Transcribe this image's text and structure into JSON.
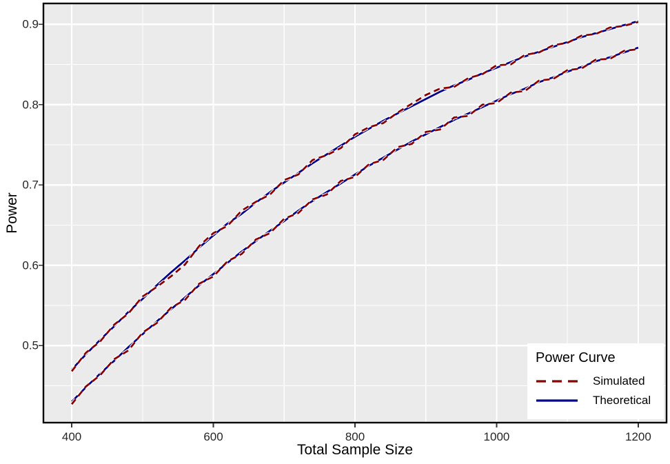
{
  "figure": {
    "panel_bg": "#EBEBEB",
    "grid_color": "#FFFFFF",
    "border_color": "#000000",
    "tick_color": "#333333",
    "tick_label_color": "#262626",
    "halo_color": "#FFFFFF"
  },
  "chart_data": {
    "type": "line",
    "title": "",
    "xlabel": "Total Sample Size",
    "ylabel": "Power",
    "xlim": [
      360,
      1240
    ],
    "ylim": [
      0.404,
      0.926
    ],
    "grid": true,
    "x_tick_values": [
      400,
      600,
      800,
      1000,
      1200
    ],
    "x_tick_labels": [
      "400",
      "600",
      "800",
      "1000",
      "1200"
    ],
    "x_minor_values": [
      500,
      700,
      900,
      1100
    ],
    "y_tick_values": [
      0.5,
      0.6,
      0.7,
      0.8,
      0.9
    ],
    "y_tick_labels": [
      "0.5",
      "0.6",
      "0.7",
      "0.8",
      "0.9"
    ],
    "y_minor_values": [
      0.45,
      0.55,
      0.65,
      0.75,
      0.85
    ],
    "legend": {
      "title": "Power Curve",
      "position": "bottom-right",
      "entries": [
        {
          "label": "Simulated",
          "color": "#8B0000",
          "dash": true
        },
        {
          "label": "Theoretical",
          "color": "#00008B",
          "dash": false
        }
      ]
    },
    "x": [
      400,
      420,
      440,
      460,
      480,
      500,
      520,
      540,
      560,
      580,
      600,
      620,
      640,
      660,
      680,
      700,
      720,
      740,
      760,
      780,
      800,
      820,
      840,
      860,
      880,
      900,
      920,
      940,
      960,
      980,
      1000,
      1020,
      1040,
      1060,
      1080,
      1100,
      1120,
      1140,
      1160,
      1180,
      1200
    ],
    "series": [
      {
        "name": "Theoretical (upper curve)",
        "legend": "Theoretical",
        "style": "solid",
        "color": "#00008B",
        "values": [
          0.47,
          0.489,
          0.507,
          0.524,
          0.542,
          0.558,
          0.575,
          0.591,
          0.606,
          0.622,
          0.637,
          0.652,
          0.664,
          0.678,
          0.691,
          0.703,
          0.715,
          0.727,
          0.738,
          0.749,
          0.76,
          0.77,
          0.78,
          0.789,
          0.798,
          0.807,
          0.816,
          0.824,
          0.831,
          0.839,
          0.846,
          0.853,
          0.86,
          0.866,
          0.872,
          0.878,
          0.884,
          0.889,
          0.894,
          0.899,
          0.904
        ]
      },
      {
        "name": "Simulated (upper curve)",
        "legend": "Simulated",
        "style": "dashed",
        "color": "#8B0000",
        "values": [
          0.468,
          0.491,
          0.505,
          0.526,
          0.54,
          0.561,
          0.573,
          0.586,
          0.601,
          0.624,
          0.64,
          0.649,
          0.668,
          0.679,
          0.688,
          0.706,
          0.713,
          0.731,
          0.737,
          0.746,
          0.763,
          0.772,
          0.777,
          0.79,
          0.801,
          0.812,
          0.82,
          0.822,
          0.833,
          0.838,
          0.849,
          0.85,
          0.862,
          0.865,
          0.874,
          0.877,
          0.886,
          0.888,
          0.896,
          0.898,
          0.903
        ]
      },
      {
        "name": "Theoretical (lower curve)",
        "legend": "Theoretical",
        "style": "solid",
        "color": "#00008B",
        "values": [
          0.43,
          0.448,
          0.465,
          0.481,
          0.498,
          0.514,
          0.53,
          0.545,
          0.56,
          0.575,
          0.589,
          0.603,
          0.617,
          0.63,
          0.643,
          0.655,
          0.668,
          0.68,
          0.691,
          0.702,
          0.713,
          0.724,
          0.734,
          0.744,
          0.754,
          0.763,
          0.772,
          0.781,
          0.789,
          0.797,
          0.805,
          0.813,
          0.82,
          0.828,
          0.834,
          0.841,
          0.847,
          0.854,
          0.859,
          0.865,
          0.871
        ]
      },
      {
        "name": "Simulated (lower curve)",
        "legend": "Simulated",
        "style": "dashed",
        "color": "#8B0000",
        "values": [
          0.427,
          0.449,
          0.463,
          0.483,
          0.494,
          0.516,
          0.528,
          0.547,
          0.557,
          0.577,
          0.586,
          0.605,
          0.614,
          0.632,
          0.64,
          0.658,
          0.665,
          0.682,
          0.688,
          0.705,
          0.71,
          0.726,
          0.731,
          0.747,
          0.751,
          0.766,
          0.769,
          0.784,
          0.786,
          0.8,
          0.802,
          0.815,
          0.817,
          0.83,
          0.832,
          0.843,
          0.845,
          0.856,
          0.857,
          0.867,
          0.869
        ]
      }
    ]
  }
}
